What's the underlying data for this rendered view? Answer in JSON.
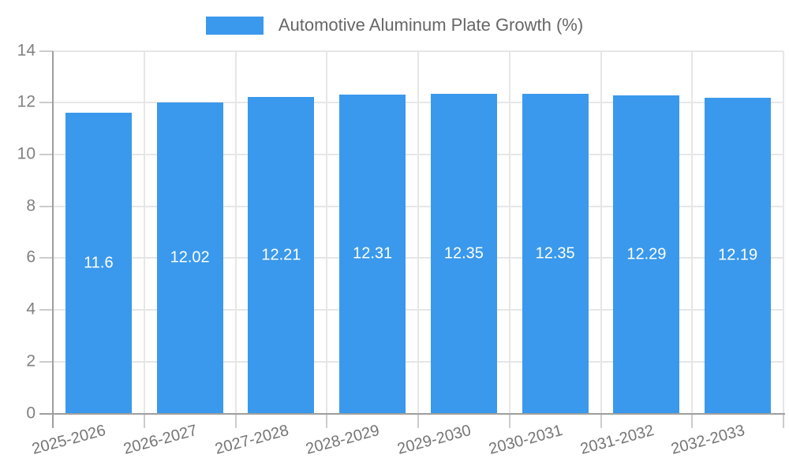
{
  "chart_data": {
    "type": "bar",
    "title": "Automotive Aluminum Plate Growth (%)",
    "categories": [
      "2025-2026",
      "2026-2027",
      "2027-2028",
      "2028-2029",
      "2029-2030",
      "2030-2031",
      "2031-2032",
      "2032-2033"
    ],
    "series": [
      {
        "name": "Automotive Aluminum Plate Growth (%)",
        "values": [
          11.6,
          12.02,
          12.21,
          12.31,
          12.35,
          12.35,
          12.29,
          12.19
        ],
        "value_labels": [
          "11.6",
          "12.02",
          "12.21",
          "12.31",
          "12.35",
          "12.35",
          "12.29",
          "12.19"
        ]
      }
    ],
    "xlabel": "",
    "ylabel": "",
    "ylim": [
      0,
      14
    ],
    "yticks": [
      0,
      2,
      4,
      6,
      8,
      10,
      12,
      14
    ],
    "grid": true,
    "legend_position": "top",
    "colors": {
      "bar": "#3A99EC",
      "bar_value_text": "#ffffff",
      "axis": "#9e9e9e",
      "gridline": "#e6e6e6",
      "tick_mark": "#cccccc",
      "legend_text": "#666666",
      "ytick_text": "#808080",
      "xtick_text": "#757575"
    }
  }
}
